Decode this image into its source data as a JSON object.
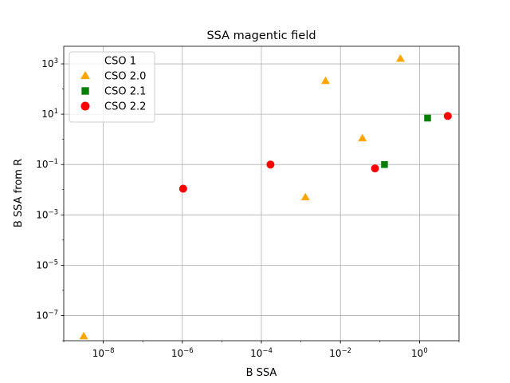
{
  "chart_data": {
    "type": "scatter",
    "title": "SSA magentic field",
    "xlabel": "B SSA",
    "ylabel": "B SSA from R",
    "xscale": "log",
    "yscale": "log",
    "xlim": [
      1e-09,
      10
    ],
    "ylim": [
      1e-08,
      5000
    ],
    "grid": true,
    "legend_position": "upper-left",
    "x_ticks": [
      {
        "base": "10",
        "exp": "−8",
        "value": 1e-08
      },
      {
        "base": "10",
        "exp": "−6",
        "value": 1e-06
      },
      {
        "base": "10",
        "exp": "−4",
        "value": 0.0001
      },
      {
        "base": "10",
        "exp": "−2",
        "value": 0.01
      },
      {
        "base": "10",
        "exp": "0",
        "value": 1
      }
    ],
    "y_ticks": [
      {
        "base": "10",
        "exp": "−7",
        "value": 1e-07
      },
      {
        "base": "10",
        "exp": "−5",
        "value": 1e-05
      },
      {
        "base": "10",
        "exp": "−3",
        "value": 0.001
      },
      {
        "base": "10",
        "exp": "−1",
        "value": 0.1
      },
      {
        "base": "10",
        "exp": "1",
        "value": 10
      },
      {
        "base": "10",
        "exp": "3",
        "value": 1000
      }
    ],
    "series": [
      {
        "name": "CSO 1",
        "marker": "none",
        "color": "#1f77b4",
        "points": []
      },
      {
        "name": "CSO 2.0",
        "marker": "triangle",
        "color": "#ffa500",
        "points": [
          {
            "x": 3.2e-09,
            "y": 1.5e-08
          },
          {
            "x": 0.0013,
            "y": 0.005
          },
          {
            "x": 0.0042,
            "y": 210
          },
          {
            "x": 0.036,
            "y": 1.1
          },
          {
            "x": 0.33,
            "y": 1600
          }
        ]
      },
      {
        "name": "CSO 2.1",
        "marker": "square",
        "color": "#008000",
        "points": [
          {
            "x": 0.13,
            "y": 0.1
          },
          {
            "x": 1.6,
            "y": 7
          }
        ]
      },
      {
        "name": "CSO 2.2",
        "marker": "circle",
        "color": "#ff0000",
        "points": [
          {
            "x": 1.05e-06,
            "y": 0.011
          },
          {
            "x": 0.00017,
            "y": 0.1
          },
          {
            "x": 0.075,
            "y": 0.07
          },
          {
            "x": 5.2,
            "y": 8.5
          }
        ]
      }
    ]
  }
}
